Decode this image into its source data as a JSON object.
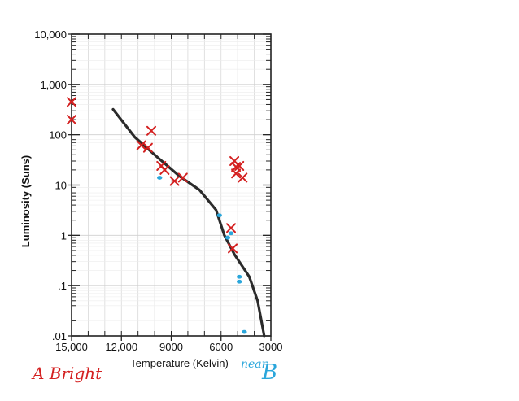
{
  "chart_data": {
    "type": "line",
    "xlabel": "Temperature (Kelvin)",
    "ylabel": "Luminosity (Suns)",
    "x_scale": "linear",
    "y_scale": "log",
    "x_reversed": true,
    "xlim": [
      15000,
      3000
    ],
    "ylim": [
      0.01,
      10000
    ],
    "x_ticks": [
      {
        "value": 15000,
        "label": "15,000"
      },
      {
        "value": 12000,
        "label": "12,000"
      },
      {
        "value": 9000,
        "label": "9000"
      },
      {
        "value": 6000,
        "label": "6000"
      },
      {
        "value": 3000,
        "label": "3000"
      }
    ],
    "y_ticks": [
      {
        "value": 10000,
        "label": "10,000"
      },
      {
        "value": 1000,
        "label": "1,000"
      },
      {
        "value": 100,
        "label": "100"
      },
      {
        "value": 10,
        "label": "10"
      },
      {
        "value": 1,
        "label": "1"
      },
      {
        "value": 0.1,
        "label": ".1"
      },
      {
        "value": 0.01,
        "label": ".01"
      }
    ],
    "grid": true,
    "series": [
      {
        "kind": "line",
        "color": "#2b2b2b",
        "points": [
          {
            "x": 12500,
            "y": 320
          },
          {
            "x": 11200,
            "y": 90
          },
          {
            "x": 9800,
            "y": 35
          },
          {
            "x": 8500,
            "y": 15
          },
          {
            "x": 7300,
            "y": 8
          },
          {
            "x": 6300,
            "y": 3.2
          },
          {
            "x": 5800,
            "y": 1.0
          },
          {
            "x": 5200,
            "y": 0.42
          },
          {
            "x": 4300,
            "y": 0.15
          },
          {
            "x": 3800,
            "y": 0.05
          },
          {
            "x": 3400,
            "y": 0.01
          }
        ]
      },
      {
        "kind": "scatter",
        "marker": "x",
        "color": "#d42020",
        "points": [
          {
            "x": 15000,
            "y": 450
          },
          {
            "x": 15000,
            "y": 200
          },
          {
            "x": 10200,
            "y": 120
          },
          {
            "x": 10800,
            "y": 62
          },
          {
            "x": 10400,
            "y": 55
          },
          {
            "x": 9600,
            "y": 24
          },
          {
            "x": 9400,
            "y": 20
          },
          {
            "x": 8800,
            "y": 12
          },
          {
            "x": 8300,
            "y": 14
          },
          {
            "x": 5200,
            "y": 30
          },
          {
            "x": 5100,
            "y": 23
          },
          {
            "x": 4900,
            "y": 24
          },
          {
            "x": 5100,
            "y": 17
          },
          {
            "x": 4700,
            "y": 14
          },
          {
            "x": 5400,
            "y": 1.4
          },
          {
            "x": 5300,
            "y": 0.55
          }
        ]
      },
      {
        "kind": "scatter",
        "marker": "dot",
        "color": "#2aa6db",
        "points": [
          {
            "x": 9700,
            "y": 14
          },
          {
            "x": 6100,
            "y": 2.5
          },
          {
            "x": 5600,
            "y": 0.9
          },
          {
            "x": 5400,
            "y": 1.1
          },
          {
            "x": 4900,
            "y": 0.15
          },
          {
            "x": 4900,
            "y": 0.12
          },
          {
            "x": 4600,
            "y": 0.012
          }
        ]
      }
    ],
    "annotations": [
      {
        "text": "A Bright",
        "color": "#d42020"
      },
      {
        "text": "B",
        "color": "#2aa6db"
      },
      {
        "text": "near",
        "color": "#2aa6db"
      }
    ]
  }
}
